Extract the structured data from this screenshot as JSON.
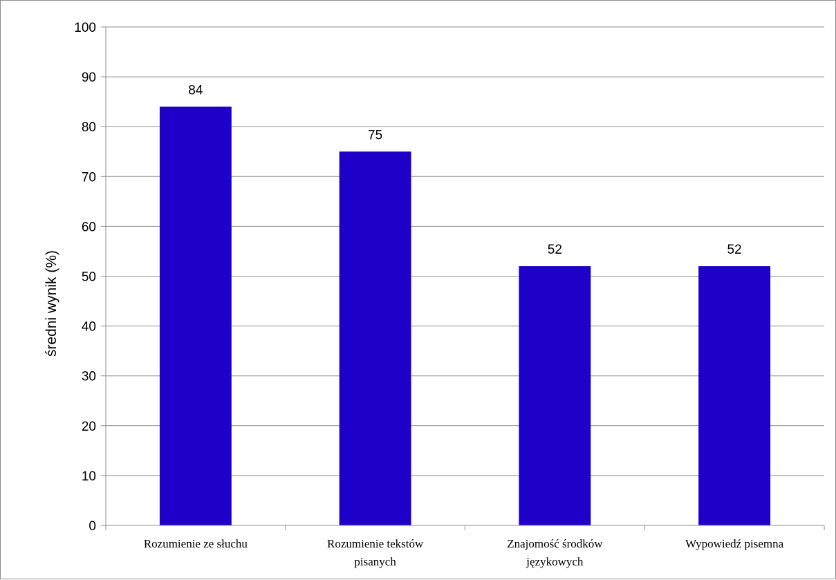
{
  "chart_data": {
    "type": "bar",
    "categories": [
      [
        "Rozumienie ze słuchu"
      ],
      [
        "Rozumienie tekstów",
        "pisanych"
      ],
      [
        "Znajomość środków",
        "językowych"
      ],
      [
        "Wypowiedź pisemna"
      ]
    ],
    "values": [
      84,
      75,
      52,
      52
    ],
    "data_labels": [
      "84",
      "75",
      "52",
      "52"
    ],
    "ylabel": "średni wynik (%)",
    "ylim": [
      0,
      100
    ],
    "y_ticks": [
      "0",
      "10",
      "20",
      "30",
      "40",
      "50",
      "60",
      "70",
      "80",
      "90",
      "100"
    ],
    "grid": true,
    "legend": "none",
    "bar_color": "#1f00c8",
    "grid_color": "#8c8c8c"
  }
}
